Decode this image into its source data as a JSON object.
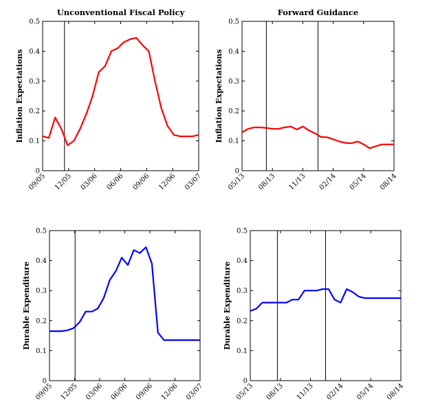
{
  "chart_data": [
    {
      "type": "line",
      "title": "Unconventional Fiscal Policy",
      "ylabel": "Inflation Expectations",
      "xlabel": "",
      "ylim": [
        0,
        0.5
      ],
      "yticks": [
        "0",
        "0.1",
        "0.2",
        "0.3",
        "0.4",
        "0.5"
      ],
      "xticks": [
        "09/05",
        "12/05",
        "03/06",
        "06/06",
        "09/06",
        "12/06",
        "03/07"
      ],
      "vlines": [
        0.14
      ],
      "color": "#ff0000",
      "series": [
        {
          "x": [
            0,
            0.04,
            0.08,
            0.12,
            0.16,
            0.2,
            0.24,
            0.28,
            0.32,
            0.36,
            0.4,
            0.44,
            0.48,
            0.52,
            0.56,
            0.6,
            0.64,
            0.68,
            0.72,
            0.76,
            0.8,
            0.84,
            0.88,
            0.92,
            0.96,
            1.0
          ],
          "values": [
            0.115,
            0.11,
            0.178,
            0.14,
            0.085,
            0.1,
            0.14,
            0.19,
            0.25,
            0.33,
            0.35,
            0.4,
            0.41,
            0.43,
            0.44,
            0.445,
            0.42,
            0.4,
            0.3,
            0.21,
            0.15,
            0.12,
            0.115,
            0.115,
            0.115,
            0.12
          ]
        }
      ]
    },
    {
      "type": "line",
      "title": "Forward Guidance",
      "ylabel": "Inflation Expectations",
      "xlabel": "",
      "ylim": [
        0,
        0.5
      ],
      "yticks": [
        "0",
        "0.1",
        "0.2",
        "0.3",
        "0.4",
        "0.5"
      ],
      "xticks": [
        "05/13",
        "08/13",
        "11/13",
        "02/14",
        "05/14",
        "08/14"
      ],
      "vlines": [
        0.16,
        0.5
      ],
      "color": "#ff0000",
      "series": [
        {
          "x": [
            0,
            0.04,
            0.08,
            0.12,
            0.16,
            0.2,
            0.24,
            0.28,
            0.32,
            0.36,
            0.4,
            0.44,
            0.48,
            0.52,
            0.56,
            0.6,
            0.64,
            0.68,
            0.72,
            0.76,
            0.8,
            0.84,
            0.88,
            0.92,
            0.96,
            1.0
          ],
          "values": [
            0.128,
            0.14,
            0.145,
            0.145,
            0.143,
            0.14,
            0.14,
            0.145,
            0.148,
            0.138,
            0.148,
            0.135,
            0.125,
            0.113,
            0.112,
            0.105,
            0.098,
            0.093,
            0.092,
            0.098,
            0.088,
            0.075,
            0.082,
            0.088,
            0.088,
            0.088
          ]
        }
      ]
    },
    {
      "type": "line",
      "title": "",
      "ylabel": "Durable Expenditure",
      "xlabel": "",
      "ylim": [
        0,
        0.5
      ],
      "yticks": [
        "0",
        "0.1",
        "0.2",
        "0.3",
        "0.4",
        "0.5"
      ],
      "xticks": [
        "09/05",
        "12/05",
        "03/06",
        "06/06",
        "09/06",
        "12/06",
        "03/07"
      ],
      "vlines": [
        0.17
      ],
      "color": "#0000ff",
      "series": [
        {
          "x": [
            0,
            0.04,
            0.08,
            0.12,
            0.16,
            0.2,
            0.24,
            0.28,
            0.32,
            0.36,
            0.4,
            0.44,
            0.48,
            0.52,
            0.56,
            0.6,
            0.64,
            0.68,
            0.72,
            0.76,
            0.8,
            0.84,
            0.88,
            0.92,
            0.96,
            1.0
          ],
          "values": [
            0.165,
            0.165,
            0.165,
            0.168,
            0.175,
            0.195,
            0.23,
            0.23,
            0.24,
            0.275,
            0.335,
            0.365,
            0.41,
            0.385,
            0.435,
            0.425,
            0.445,
            0.39,
            0.16,
            0.135,
            0.135,
            0.135,
            0.135,
            0.135,
            0.135,
            0.135
          ]
        }
      ]
    },
    {
      "type": "line",
      "title": "",
      "ylabel": "Durable Expenditure",
      "xlabel": "",
      "ylim": [
        0,
        0.5
      ],
      "yticks": [
        "0",
        "0.1",
        "0.2",
        "0.3",
        "0.4",
        "0.5"
      ],
      "xticks": [
        "05/13",
        "08/13",
        "11/13",
        "02/14",
        "05/14",
        "08/14"
      ],
      "vlines": [
        0.18,
        0.5
      ],
      "color": "#0000ff",
      "series": [
        {
          "x": [
            0,
            0.04,
            0.08,
            0.12,
            0.16,
            0.2,
            0.24,
            0.28,
            0.32,
            0.36,
            0.4,
            0.44,
            0.48,
            0.52,
            0.56,
            0.6,
            0.64,
            0.68,
            0.72,
            0.76,
            0.8,
            0.84,
            0.88,
            0.92,
            0.96,
            1.0
          ],
          "values": [
            0.232,
            0.24,
            0.26,
            0.26,
            0.26,
            0.26,
            0.26,
            0.27,
            0.27,
            0.3,
            0.3,
            0.3,
            0.305,
            0.305,
            0.27,
            0.26,
            0.305,
            0.295,
            0.28,
            0.275,
            0.275,
            0.275,
            0.275,
            0.275,
            0.275,
            0.275
          ]
        }
      ]
    }
  ]
}
